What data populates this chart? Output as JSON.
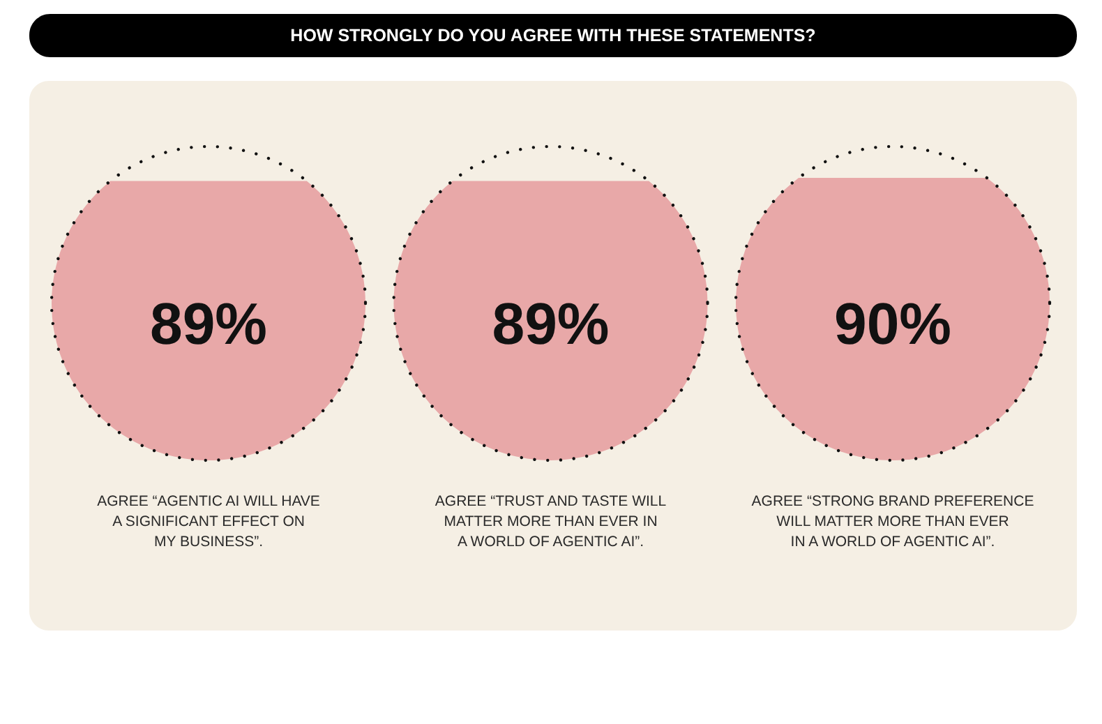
{
  "chart_data": {
    "type": "other",
    "title": "HOW STRONGLY DO YOU AGREE WITH THESE STATEMENTS?",
    "categories": [
      "AGREE “AGENTIC AI WILL HAVE\nA SIGNIFICANT EFFECT ON\nMY BUSINESS”.",
      "AGREE “TRUST AND TASTE WILL\nMATTER MORE THAN EVER IN\nA WORLD OF AGENTIC AI”.",
      "AGREE “STRONG BRAND PREFERENCE\nWILL MATTER MORE THAN EVER\nIN A WORLD OF AGENTIC AI”."
    ],
    "values": [
      89,
      89,
      90
    ],
    "value_labels": [
      "89%",
      "89%",
      "90%"
    ],
    "colors": [
      "#e8a8a8",
      "#e8a8a8",
      "#e8a8a8"
    ]
  }
}
